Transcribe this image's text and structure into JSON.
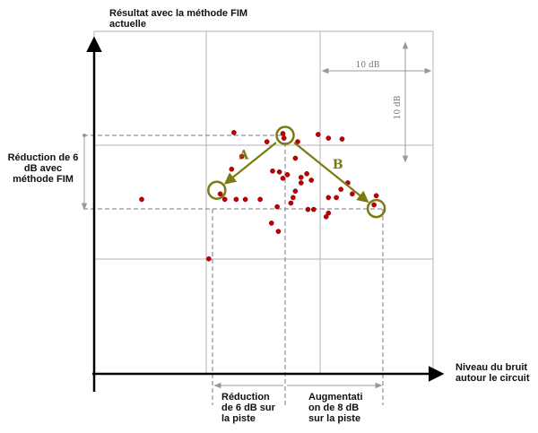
{
  "chart_data": {
    "type": "scatter",
    "y_axis_label": "Résultat avec la méthode FIM actuelle",
    "x_axis_label": "Niveau du bruit autour le circuit",
    "scale_indicators": {
      "horizontal": "10 dB",
      "vertical": "10 dB"
    },
    "left_annotation": "Réduction de 6 dB avec méthode FIM",
    "bottom_annotation_left": "Réduction de 6 dB sur la piste",
    "bottom_annotation_right": "Augmentati on de 8 dB sur la piste",
    "arrow_labels": [
      "A",
      "B"
    ],
    "highlighted_points": [
      {
        "label": "reference",
        "x": 0,
        "y": 0
      },
      {
        "label": "A",
        "x": -6,
        "y": -6
      },
      {
        "label": "B",
        "x": 8,
        "y": -8
      }
    ],
    "points": [
      [
        -4.5,
        0.3
      ],
      [
        -1.6,
        -0.7
      ],
      [
        -0.2,
        0.2
      ],
      [
        -0.1,
        -0.3
      ],
      [
        1.1,
        -0.7
      ],
      [
        2.9,
        0.1
      ],
      [
        3.8,
        -0.3
      ],
      [
        5.0,
        -0.4
      ],
      [
        -3.8,
        -2.3
      ],
      [
        -4.7,
        -3.7
      ],
      [
        0.9,
        -2.5
      ],
      [
        -1.1,
        -3.9
      ],
      [
        -0.5,
        -4.0
      ],
      [
        -0.2,
        -4.7
      ],
      [
        0.2,
        -4.3
      ],
      [
        1.4,
        -4.6
      ],
      [
        1.9,
        -4.2
      ],
      [
        2.3,
        -4.9
      ],
      [
        1.4,
        -5.2
      ],
      [
        4.9,
        -5.9
      ],
      [
        5.5,
        -5.2
      ],
      [
        4.5,
        -6.8
      ],
      [
        3.8,
        -6.8
      ],
      [
        5.9,
        -6.4
      ],
      [
        8.0,
        -6.6
      ],
      [
        7.8,
        -7.6
      ],
      [
        0.9,
        -6.1
      ],
      [
        0.7,
        -6.8
      ],
      [
        -5.7,
        -6.4
      ],
      [
        -5.3,
        -7.0
      ],
      [
        -4.3,
        -7.0
      ],
      [
        -3.5,
        -7.0
      ],
      [
        -2.2,
        -7.0
      ],
      [
        -0.7,
        -7.8
      ],
      [
        0.5,
        -7.4
      ],
      [
        2.0,
        -8.1
      ],
      [
        2.5,
        -8.1
      ],
      [
        3.8,
        -8.5
      ],
      [
        3.6,
        -8.9
      ],
      [
        -1.2,
        -9.6
      ],
      [
        -0.6,
        -10.5
      ],
      [
        -6.7,
        -13.5
      ],
      [
        -12.6,
        -7.0
      ]
    ]
  }
}
